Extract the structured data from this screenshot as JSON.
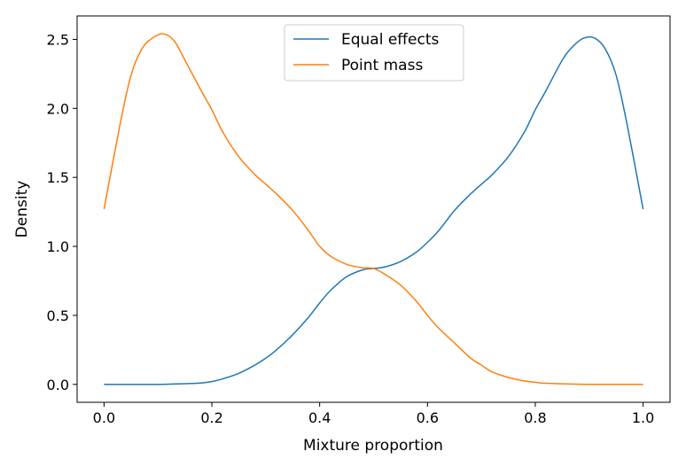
{
  "chart_data": {
    "type": "line",
    "title": "",
    "xlabel": "Mixture proportion",
    "ylabel": "Density",
    "xlim": [
      -0.05,
      1.05
    ],
    "ylim": [
      -0.13,
      2.67
    ],
    "xticks": [
      0.0,
      0.2,
      0.4,
      0.6,
      0.8,
      1.0
    ],
    "xtick_labels": [
      "0.0",
      "0.2",
      "0.4",
      "0.6",
      "0.8",
      "1.0"
    ],
    "yticks": [
      0.0,
      0.5,
      1.0,
      1.5,
      2.0,
      2.5
    ],
    "ytick_labels": [
      "0.0",
      "0.5",
      "1.0",
      "1.5",
      "2.0",
      "2.5"
    ],
    "grid": false,
    "legend_position": "top-center",
    "series": [
      {
        "name": "Equal effects",
        "color": "#1f77b4",
        "x": [
          0.0,
          0.05,
          0.1,
          0.15,
          0.18,
          0.2,
          0.22,
          0.25,
          0.28,
          0.3,
          0.32,
          0.35,
          0.38,
          0.4,
          0.42,
          0.45,
          0.48,
          0.5,
          0.52,
          0.55,
          0.58,
          0.6,
          0.62,
          0.65,
          0.68,
          0.7,
          0.72,
          0.75,
          0.78,
          0.8,
          0.82,
          0.85,
          0.87,
          0.89,
          0.91,
          0.93,
          0.95,
          0.97,
          1.0
        ],
        "y": [
          0.0,
          0.0,
          0.0,
          0.005,
          0.01,
          0.02,
          0.04,
          0.08,
          0.14,
          0.19,
          0.25,
          0.36,
          0.49,
          0.59,
          0.68,
          0.78,
          0.83,
          0.84,
          0.85,
          0.89,
          0.96,
          1.03,
          1.11,
          1.26,
          1.38,
          1.45,
          1.52,
          1.65,
          1.83,
          1.99,
          2.13,
          2.35,
          2.45,
          2.51,
          2.51,
          2.43,
          2.24,
          1.89,
          1.27
        ]
      },
      {
        "name": "Point mass",
        "color": "#ff7f0e",
        "x": [
          0.0,
          0.03,
          0.05,
          0.07,
          0.09,
          0.11,
          0.13,
          0.15,
          0.18,
          0.2,
          0.22,
          0.25,
          0.28,
          0.3,
          0.32,
          0.35,
          0.38,
          0.4,
          0.42,
          0.45,
          0.48,
          0.5,
          0.52,
          0.55,
          0.58,
          0.6,
          0.62,
          0.65,
          0.68,
          0.7,
          0.72,
          0.75,
          0.78,
          0.8,
          0.82,
          0.85,
          0.9,
          0.95,
          1.0
        ],
        "y": [
          1.27,
          1.89,
          2.24,
          2.43,
          2.51,
          2.54,
          2.49,
          2.35,
          2.13,
          1.99,
          1.83,
          1.65,
          1.52,
          1.45,
          1.38,
          1.26,
          1.11,
          1.0,
          0.93,
          0.87,
          0.845,
          0.84,
          0.8,
          0.72,
          0.6,
          0.5,
          0.41,
          0.3,
          0.19,
          0.14,
          0.09,
          0.05,
          0.025,
          0.015,
          0.008,
          0.004,
          0.0,
          0.0,
          0.0
        ]
      }
    ]
  }
}
